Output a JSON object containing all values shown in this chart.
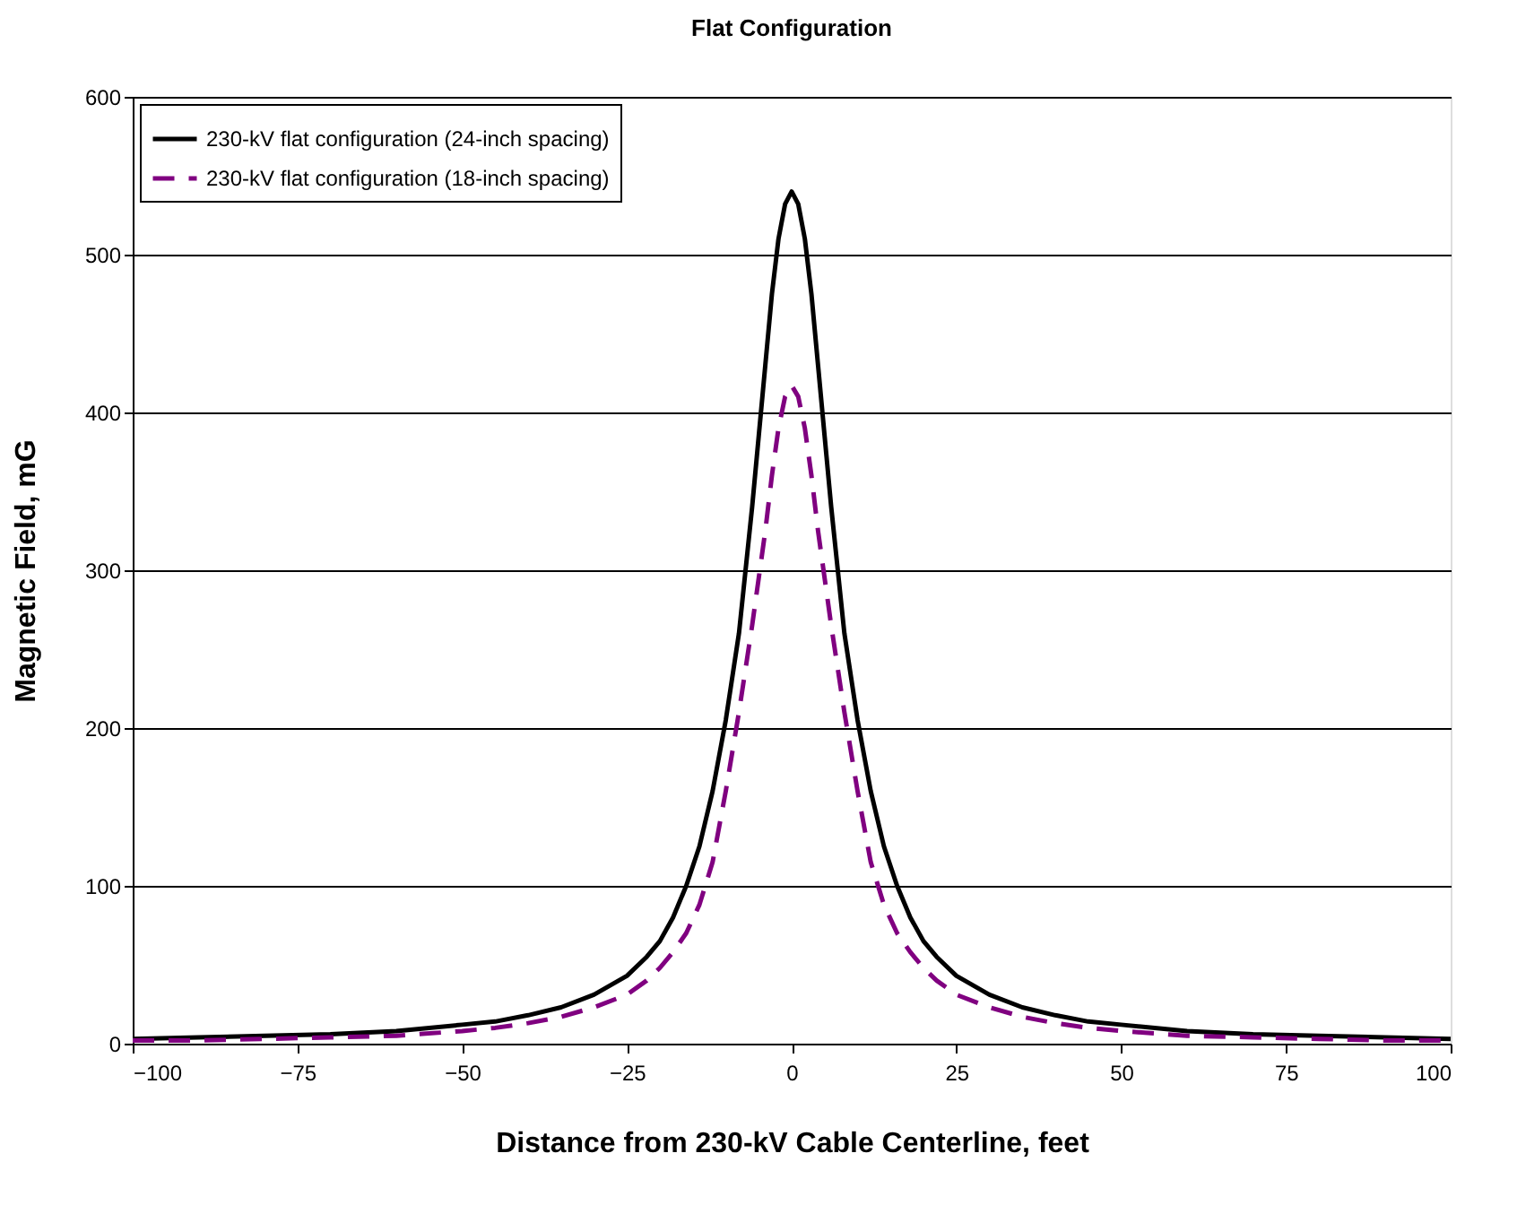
{
  "chart_data": {
    "type": "line",
    "title": "Flat Configuration",
    "xlabel": "Distance from 230-kV Cable Centerline, feet",
    "ylabel": "Magnetic Field, mG",
    "x": [
      -100,
      -90,
      -80,
      -70,
      -60,
      -50,
      -45,
      -40,
      -35,
      -30,
      -25,
      -22,
      -20,
      -18,
      -16,
      -14,
      -12,
      -10,
      -8,
      -6,
      -5,
      -4,
      -3,
      -2,
      -1,
      0,
      1,
      2,
      3,
      4,
      5,
      6,
      8,
      10,
      12,
      14,
      16,
      18,
      20,
      22,
      25,
      30,
      35,
      40,
      45,
      50,
      60,
      70,
      80,
      90,
      100
    ],
    "series": [
      {
        "name": "230-kV flat configuration (24-inch spacing)",
        "color": "#000000",
        "line_style": "solid",
        "values": [
          3,
          4,
          5,
          6,
          8,
          12,
          14,
          18,
          23,
          31,
          43,
          55,
          65,
          80,
          100,
          125,
          160,
          205,
          260,
          340,
          385,
          430,
          475,
          510,
          532,
          540,
          532,
          510,
          475,
          430,
          385,
          340,
          260,
          205,
          160,
          125,
          100,
          80,
          65,
          55,
          43,
          31,
          23,
          18,
          14,
          12,
          8,
          6,
          5,
          4,
          3
        ]
      },
      {
        "name": "230-kV flat configuration (18-inch spacing)",
        "color": "#800080",
        "line_style": "dashed",
        "values": [
          2,
          2,
          3,
          4,
          5,
          8,
          10,
          13,
          17,
          23,
          31,
          40,
          48,
          58,
          70,
          88,
          115,
          160,
          210,
          265,
          295,
          325,
          360,
          390,
          410,
          417,
          410,
          390,
          360,
          325,
          295,
          265,
          210,
          160,
          115,
          88,
          70,
          58,
          48,
          40,
          31,
          23,
          17,
          13,
          10,
          8,
          5,
          4,
          3,
          2,
          2
        ]
      }
    ],
    "xlim": [
      -100,
      100
    ],
    "xticks": [
      -100,
      -75,
      -50,
      -25,
      0,
      25,
      50,
      75,
      100
    ],
    "ylim": [
      0,
      600
    ],
    "yticks": [
      0,
      100,
      200,
      300,
      400,
      500,
      600
    ],
    "grid": "y",
    "legend": "top left",
    "marker": "none"
  }
}
